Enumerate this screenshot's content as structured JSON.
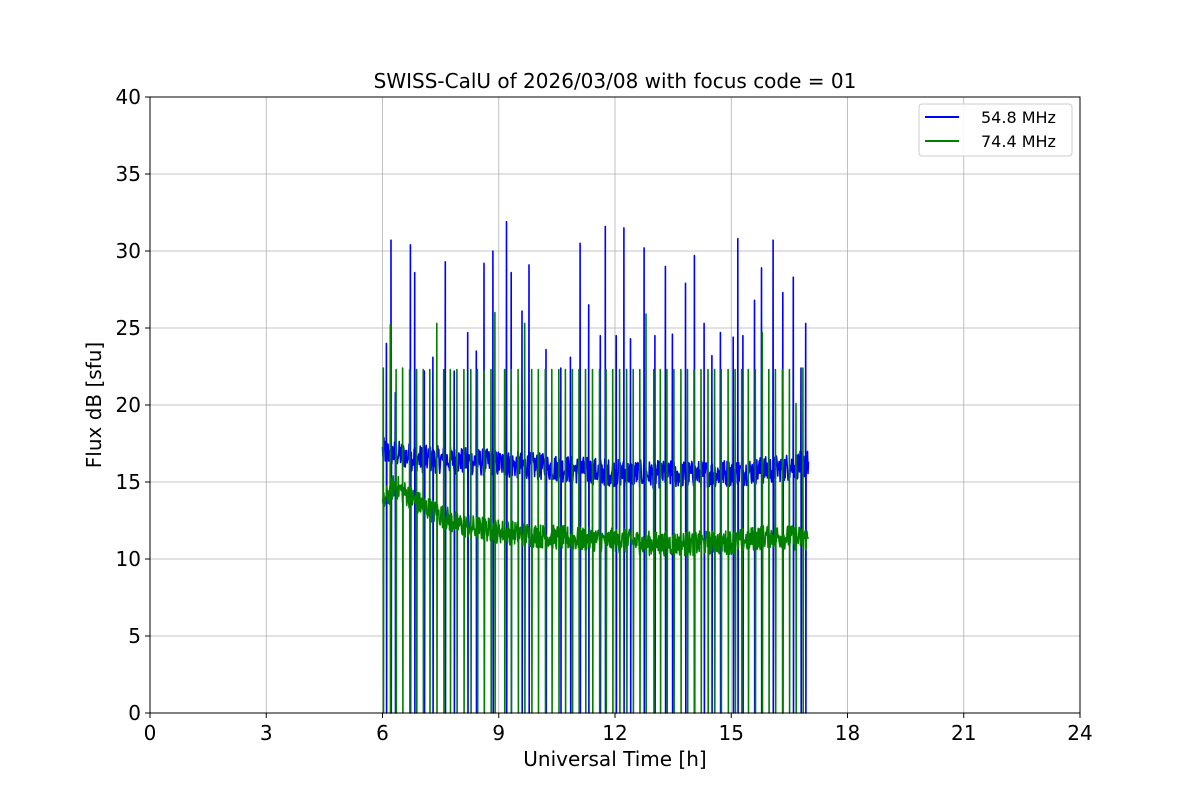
{
  "chart_data": {
    "type": "line",
    "title": "SWISS-CalU of 2026/03/08 with focus code = 01",
    "xlabel": "Universal Time [h]",
    "ylabel": "Flux dB [sfu]",
    "xlim": [
      0,
      24
    ],
    "ylim": [
      0,
      40
    ],
    "xticks": [
      0,
      3,
      6,
      9,
      12,
      15,
      18,
      21,
      24
    ],
    "yticks": [
      0,
      5,
      10,
      15,
      20,
      25,
      30,
      35,
      40
    ],
    "grid": true,
    "legend_position": "top-right",
    "series": [
      {
        "name": "54.8 MHz",
        "color": "#0000ff",
        "spikes": [
          {
            "x": 6.1,
            "y": 24.0
          },
          {
            "x": 6.22,
            "y": 30.7
          },
          {
            "x": 6.33,
            "y": 20.8
          },
          {
            "x": 6.72,
            "y": 30.4
          },
          {
            "x": 6.83,
            "y": 28.6
          },
          {
            "x": 7.08,
            "y": 22.2
          },
          {
            "x": 7.3,
            "y": 23.1
          },
          {
            "x": 7.62,
            "y": 29.3
          },
          {
            "x": 7.85,
            "y": 22.2
          },
          {
            "x": 8.2,
            "y": 24.7
          },
          {
            "x": 8.42,
            "y": 23.5
          },
          {
            "x": 8.62,
            "y": 29.2
          },
          {
            "x": 8.85,
            "y": 30.0
          },
          {
            "x": 9.2,
            "y": 31.9
          },
          {
            "x": 9.32,
            "y": 28.6
          },
          {
            "x": 9.6,
            "y": 26.1
          },
          {
            "x": 9.78,
            "y": 29.1
          },
          {
            "x": 10.22,
            "y": 23.6
          },
          {
            "x": 10.6,
            "y": 22.4
          },
          {
            "x": 10.85,
            "y": 23.1
          },
          {
            "x": 11.1,
            "y": 30.5
          },
          {
            "x": 11.32,
            "y": 26.5
          },
          {
            "x": 11.62,
            "y": 24.5
          },
          {
            "x": 11.75,
            "y": 31.6
          },
          {
            "x": 12.03,
            "y": 24.5
          },
          {
            "x": 12.23,
            "y": 31.5
          },
          {
            "x": 12.4,
            "y": 24.3
          },
          {
            "x": 12.75,
            "y": 30.2
          },
          {
            "x": 13.03,
            "y": 24.5
          },
          {
            "x": 13.3,
            "y": 29.0
          },
          {
            "x": 13.48,
            "y": 24.6
          },
          {
            "x": 13.82,
            "y": 27.9
          },
          {
            "x": 14.05,
            "y": 29.7
          },
          {
            "x": 14.3,
            "y": 25.3
          },
          {
            "x": 14.5,
            "y": 23.2
          },
          {
            "x": 14.72,
            "y": 24.7
          },
          {
            "x": 15.05,
            "y": 24.4
          },
          {
            "x": 15.17,
            "y": 30.8
          },
          {
            "x": 15.3,
            "y": 24.5
          },
          {
            "x": 15.6,
            "y": 26.8
          },
          {
            "x": 15.78,
            "y": 28.9
          },
          {
            "x": 16.08,
            "y": 30.7
          },
          {
            "x": 16.33,
            "y": 27.3
          },
          {
            "x": 16.6,
            "y": 28.3
          },
          {
            "x": 16.8,
            "y": 22.4
          },
          {
            "x": 16.92,
            "y": 25.3
          }
        ]
      },
      {
        "name": "74.4 MHz",
        "color": "#008000",
        "spikes": [
          {
            "x": 6.02,
            "y": 22.4
          },
          {
            "x": 6.2,
            "y": 25.2
          },
          {
            "x": 6.35,
            "y": 22.3
          },
          {
            "x": 6.52,
            "y": 22.4
          },
          {
            "x": 6.7,
            "y": 22.3
          },
          {
            "x": 6.88,
            "y": 22.3
          },
          {
            "x": 7.05,
            "y": 22.3
          },
          {
            "x": 7.22,
            "y": 22.3
          },
          {
            "x": 7.4,
            "y": 25.3
          },
          {
            "x": 7.58,
            "y": 22.3
          },
          {
            "x": 7.75,
            "y": 22.3
          },
          {
            "x": 7.92,
            "y": 22.3
          },
          {
            "x": 8.1,
            "y": 22.3
          },
          {
            "x": 8.28,
            "y": 22.3
          },
          {
            "x": 8.45,
            "y": 22.3
          },
          {
            "x": 8.62,
            "y": 22.2
          },
          {
            "x": 8.8,
            "y": 22.3
          },
          {
            "x": 8.9,
            "y": 26.0
          },
          {
            "x": 9.15,
            "y": 22.3
          },
          {
            "x": 9.32,
            "y": 22.3
          },
          {
            "x": 9.5,
            "y": 22.3
          },
          {
            "x": 9.67,
            "y": 25.3
          },
          {
            "x": 9.85,
            "y": 22.3
          },
          {
            "x": 10.02,
            "y": 22.3
          },
          {
            "x": 10.2,
            "y": 22.3
          },
          {
            "x": 10.37,
            "y": 22.3
          },
          {
            "x": 10.55,
            "y": 22.3
          },
          {
            "x": 10.72,
            "y": 22.3
          },
          {
            "x": 10.9,
            "y": 22.3
          },
          {
            "x": 11.07,
            "y": 22.3
          },
          {
            "x": 11.24,
            "y": 22.3
          },
          {
            "x": 11.42,
            "y": 22.3
          },
          {
            "x": 11.6,
            "y": 22.3
          },
          {
            "x": 11.77,
            "y": 22.3
          },
          {
            "x": 11.94,
            "y": 22.3
          },
          {
            "x": 12.12,
            "y": 22.3
          },
          {
            "x": 12.3,
            "y": 22.3
          },
          {
            "x": 12.47,
            "y": 22.3
          },
          {
            "x": 12.64,
            "y": 22.3
          },
          {
            "x": 12.8,
            "y": 25.9
          },
          {
            "x": 13.0,
            "y": 22.3
          },
          {
            "x": 13.17,
            "y": 22.3
          },
          {
            "x": 13.34,
            "y": 22.3
          },
          {
            "x": 13.52,
            "y": 22.3
          },
          {
            "x": 13.7,
            "y": 22.3
          },
          {
            "x": 13.87,
            "y": 22.3
          },
          {
            "x": 14.04,
            "y": 22.3
          },
          {
            "x": 14.22,
            "y": 22.3
          },
          {
            "x": 14.4,
            "y": 22.3
          },
          {
            "x": 14.57,
            "y": 22.3
          },
          {
            "x": 14.74,
            "y": 22.3
          },
          {
            "x": 14.92,
            "y": 22.3
          },
          {
            "x": 15.1,
            "y": 22.3
          },
          {
            "x": 15.27,
            "y": 22.3
          },
          {
            "x": 15.44,
            "y": 22.3
          },
          {
            "x": 15.62,
            "y": 22.3
          },
          {
            "x": 15.8,
            "y": 24.7
          },
          {
            "x": 15.97,
            "y": 22.3
          },
          {
            "x": 16.14,
            "y": 22.3
          },
          {
            "x": 16.32,
            "y": 22.3
          },
          {
            "x": 16.5,
            "y": 22.3
          },
          {
            "x": 16.67,
            "y": 20.1
          },
          {
            "x": 16.85,
            "y": 22.4
          }
        ]
      }
    ],
    "baselines": [
      {
        "series": "54.8 MHz",
        "start": 6.0,
        "end": 17.0,
        "points": [
          [
            6.0,
            17.0
          ],
          [
            7.0,
            16.5
          ],
          [
            8.0,
            16.4
          ],
          [
            9.0,
            16.2
          ],
          [
            10.0,
            16.0
          ],
          [
            11.0,
            15.8
          ],
          [
            12.0,
            15.6
          ],
          [
            13.0,
            15.5
          ],
          [
            14.0,
            15.5
          ],
          [
            15.0,
            15.6
          ],
          [
            16.0,
            15.8
          ],
          [
            17.0,
            16.2
          ]
        ],
        "noise": 0.9
      },
      {
        "series": "74.4 MHz",
        "start": 6.0,
        "end": 17.0,
        "points": [
          [
            6.0,
            13.5
          ],
          [
            6.3,
            14.8
          ],
          [
            7.0,
            13.5
          ],
          [
            8.0,
            12.2
          ],
          [
            9.0,
            11.8
          ],
          [
            10.0,
            11.5
          ],
          [
            11.0,
            11.3
          ],
          [
            12.0,
            11.2
          ],
          [
            13.0,
            11.0
          ],
          [
            14.0,
            11.0
          ],
          [
            15.0,
            11.1
          ],
          [
            16.0,
            11.5
          ],
          [
            17.0,
            11.3
          ]
        ],
        "noise": 0.8
      }
    ]
  }
}
